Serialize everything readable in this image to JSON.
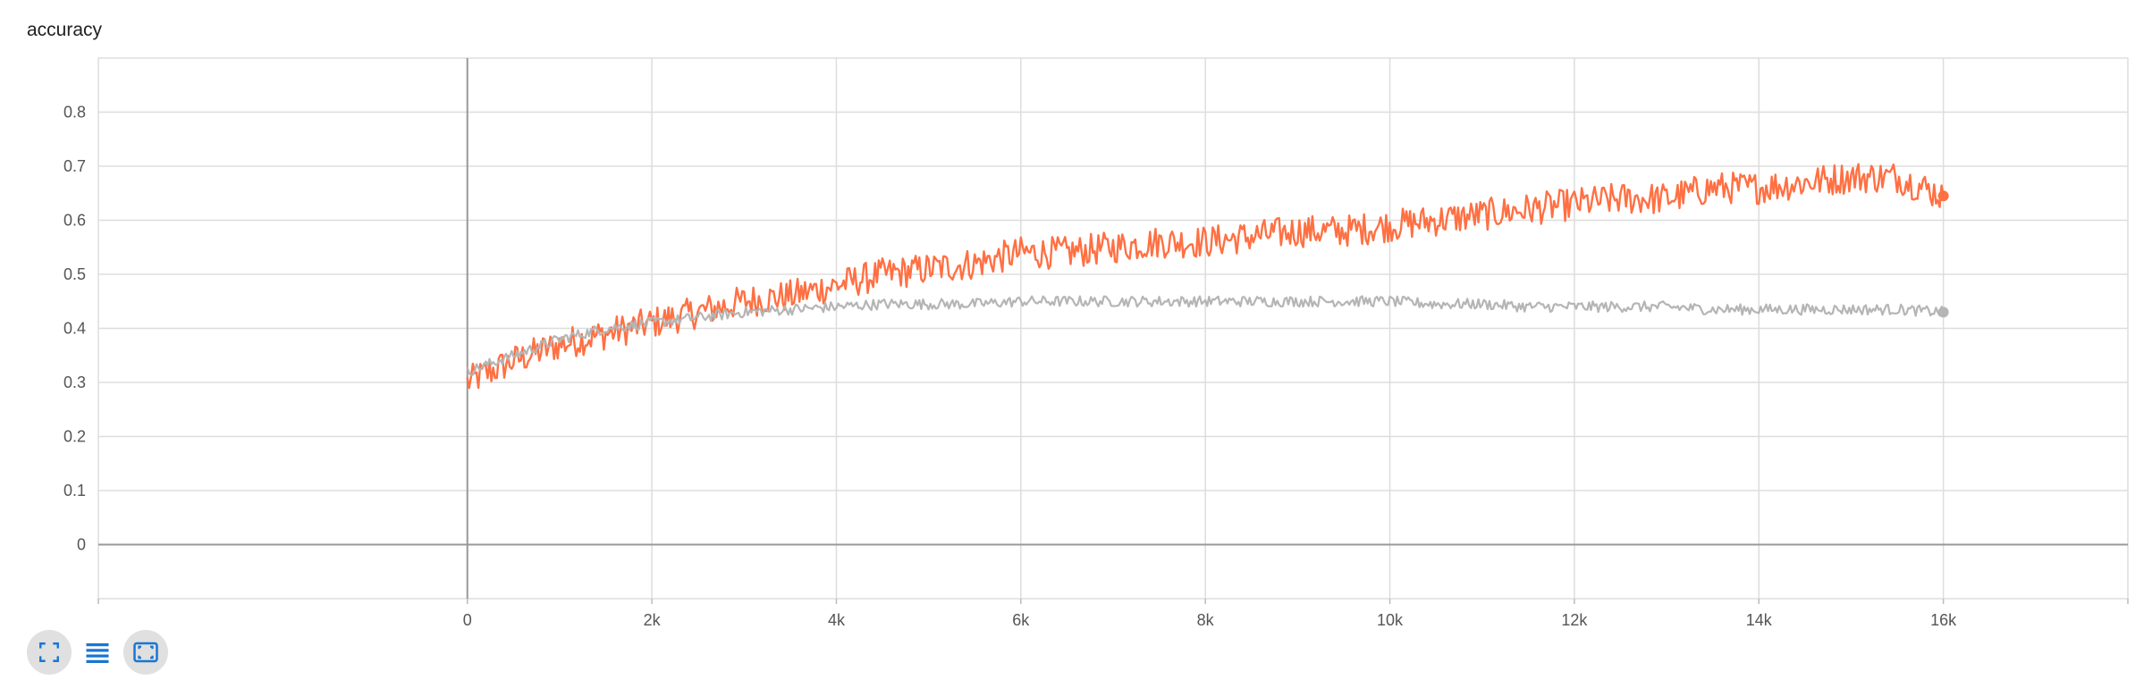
{
  "card": {
    "title": "accuracy"
  },
  "colors": {
    "series_train": "#ff7043",
    "series_eval": "#b5b5b5",
    "grid": "#dddddd",
    "axis": "#999999",
    "icon": "#1976d2"
  },
  "toolbar": {
    "icons": [
      "fit-domain-icon",
      "data-table-icon",
      "log-scale-icon"
    ]
  },
  "chart_data": {
    "type": "line",
    "title": "accuracy",
    "xlabel": "",
    "ylabel": "",
    "xlim": [
      -4000,
      18000
    ],
    "ylim": [
      -0.1,
      0.9
    ],
    "x_ticks": [
      0,
      2000,
      4000,
      6000,
      8000,
      10000,
      12000,
      14000,
      16000
    ],
    "x_tick_labels": [
      "0",
      "2k",
      "4k",
      "6k",
      "8k",
      "10k",
      "12k",
      "14k",
      "16k"
    ],
    "y_ticks": [
      0,
      0.1,
      0.2,
      0.3,
      0.4,
      0.5,
      0.6,
      0.7,
      0.8
    ],
    "y_tick_labels": [
      "0",
      "0.1",
      "0.2",
      "0.3",
      "0.4",
      "0.5",
      "0.6",
      "0.7",
      "0.8"
    ],
    "grid": true,
    "series": [
      {
        "color": "#ff7043",
        "x": [
          0,
          500,
          1000,
          1500,
          2000,
          2500,
          3000,
          3500,
          4000,
          4500,
          5000,
          5500,
          6000,
          6500,
          7000,
          7500,
          8000,
          8500,
          9000,
          9500,
          10000,
          10500,
          11000,
          11500,
          12000,
          12500,
          13000,
          13500,
          14000,
          14500,
          15000,
          15500,
          16000
        ],
        "y": [
          0.3,
          0.34,
          0.37,
          0.39,
          0.41,
          0.43,
          0.45,
          0.46,
          0.48,
          0.5,
          0.51,
          0.52,
          0.54,
          0.54,
          0.55,
          0.56,
          0.56,
          0.57,
          0.58,
          0.58,
          0.59,
          0.6,
          0.61,
          0.62,
          0.63,
          0.64,
          0.64,
          0.66,
          0.66,
          0.67,
          0.68,
          0.68,
          0.645
        ],
        "noise": 0.03
      },
      {
        "color": "#b5b5b5",
        "x": [
          0,
          500,
          1000,
          1500,
          2000,
          2500,
          3000,
          3500,
          4000,
          4500,
          5000,
          5500,
          6000,
          6500,
          7000,
          7500,
          8000,
          8500,
          9000,
          9500,
          10000,
          10500,
          11000,
          11500,
          12000,
          12500,
          13000,
          13500,
          14000,
          14500,
          15000,
          15500,
          16000
        ],
        "y": [
          0.32,
          0.35,
          0.38,
          0.4,
          0.41,
          0.42,
          0.43,
          0.435,
          0.44,
          0.445,
          0.445,
          0.445,
          0.45,
          0.45,
          0.45,
          0.45,
          0.45,
          0.45,
          0.45,
          0.45,
          0.45,
          0.445,
          0.445,
          0.44,
          0.44,
          0.44,
          0.44,
          0.435,
          0.435,
          0.435,
          0.435,
          0.435,
          0.43
        ],
        "noise": 0.01
      }
    ]
  }
}
